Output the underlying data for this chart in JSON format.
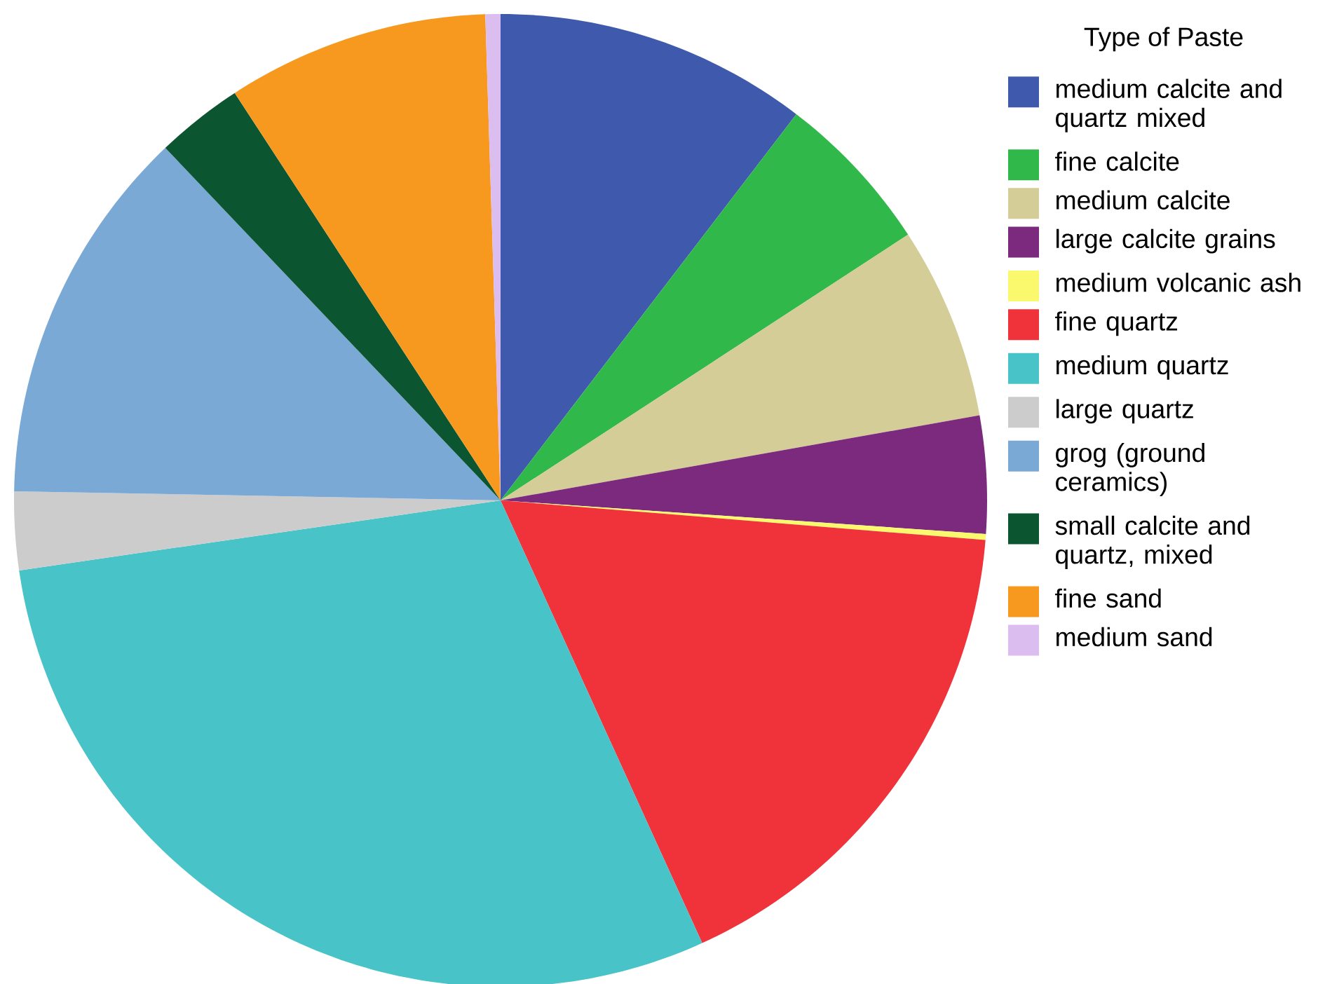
{
  "chart_data": {
    "type": "pie",
    "legend_title": "Type of Paste",
    "legend": "right",
    "categories": [
      "medium calcite and quartz mixed",
      "fine calcite",
      "medium calcite",
      "large calcite grains",
      "medium volcanic ash",
      "fine quartz",
      "medium quartz",
      "large quartz",
      "grog (ground ceramics)",
      "small calcite and quartz, mixed",
      "fine sand",
      "medium sand"
    ],
    "values": [
      10.4,
      5.4,
      6.4,
      3.9,
      0.2,
      16.9,
      29.5,
      2.6,
      12.6,
      2.9,
      8.7,
      0.5
    ],
    "colors": [
      "#3f5aad",
      "#31b84a",
      "#d4cd97",
      "#7b2a7e",
      "#faf96d",
      "#f0323a",
      "#48c3c7",
      "#cccccc",
      "#7ba9d6",
      "#0b5630",
      "#f7991f",
      "#dcbdf0"
    ]
  }
}
